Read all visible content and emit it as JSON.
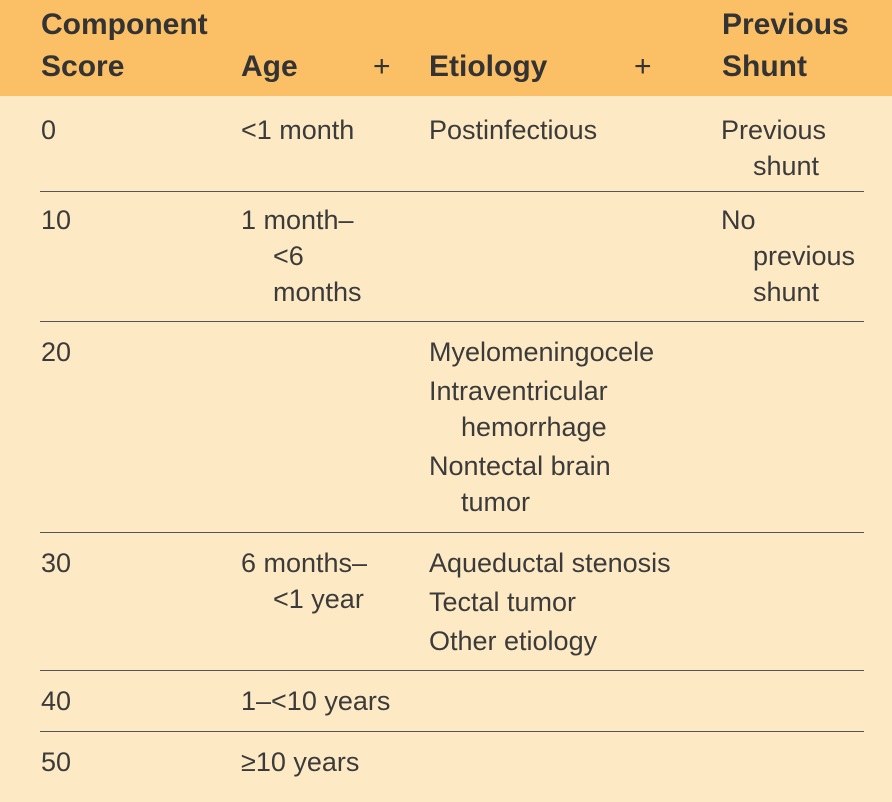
{
  "header": {
    "score": [
      "Component",
      "Score"
    ],
    "age": "Age",
    "plus_1": "+",
    "etiology": "Etiology",
    "plus_2": "+",
    "shunt": [
      "Previous",
      "Shunt"
    ]
  },
  "rows": [
    {
      "score": "0",
      "age": [
        "<1 month"
      ],
      "etiology": [
        [
          "Postinfectious"
        ]
      ],
      "shunt": [
        "Previous",
        "shunt"
      ]
    },
    {
      "score": "10",
      "age": [
        "1 month–",
        "<6",
        "months"
      ],
      "etiology": [],
      "shunt": [
        "No",
        "previous",
        "shunt"
      ]
    },
    {
      "score": "20",
      "age": [],
      "etiology": [
        [
          "Myelomeningocele"
        ],
        [
          "Intraventricular",
          "hemorrhage"
        ],
        [
          "Nontectal brain",
          "tumor"
        ]
      ],
      "shunt": []
    },
    {
      "score": "30",
      "age": [
        "6 months–",
        "<1 year"
      ],
      "etiology": [
        [
          "Aqueductal stenosis"
        ],
        [
          "Tectal tumor"
        ],
        [
          "Other etiology"
        ]
      ],
      "shunt": []
    },
    {
      "score": "40",
      "age": [
        "1–<10 years"
      ],
      "etiology": [],
      "shunt": []
    },
    {
      "score": "50",
      "age": [
        "≥10 years"
      ],
      "etiology": [],
      "shunt": []
    }
  ]
}
